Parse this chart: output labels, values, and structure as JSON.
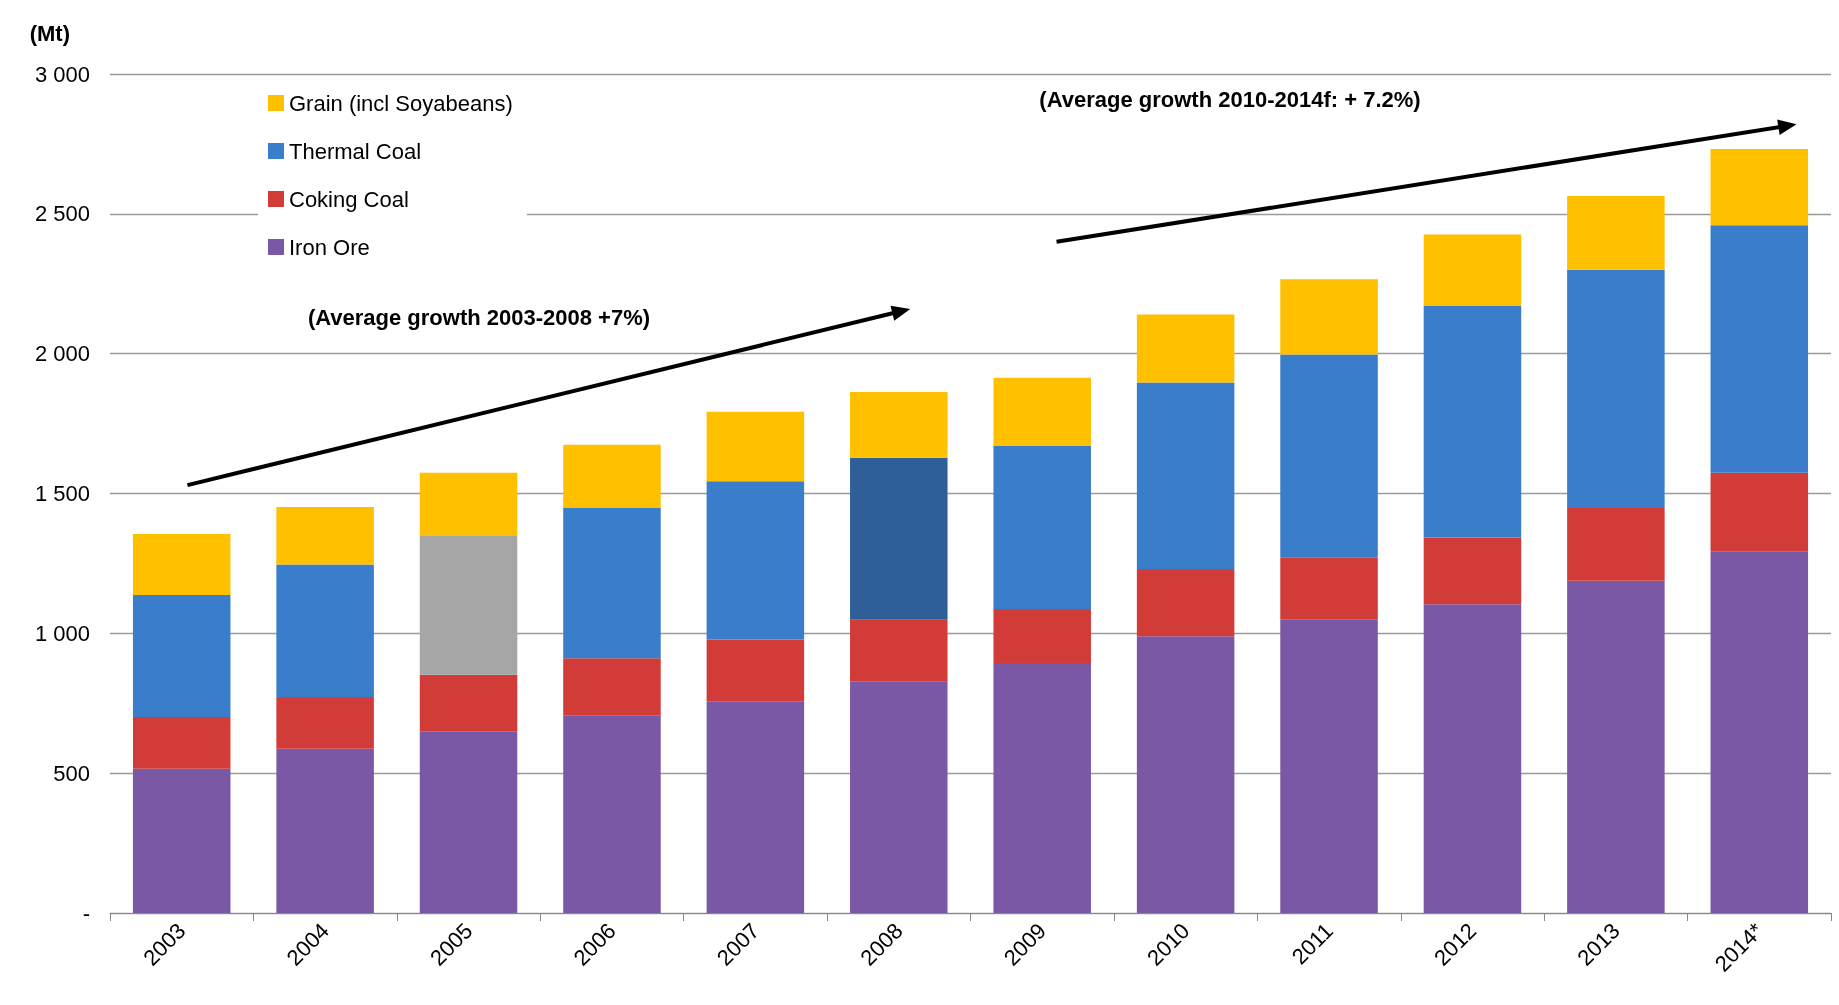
{
  "chart_data": {
    "type": "bar",
    "stacked": true,
    "ylabel": "(Mt)",
    "categories": [
      "2003",
      "2004",
      "2005",
      "2006",
      "2007",
      "2008",
      "2009",
      "2010",
      "2011",
      "2012",
      "2013",
      "2014*"
    ],
    "series": [
      {
        "name": "Iron Ore",
        "color": "#7b58a6",
        "values": [
          516,
          587,
          650,
          705,
          755,
          827,
          894,
          990,
          1049,
          1104,
          1188,
          1292
        ]
      },
      {
        "name": "Coking Coal",
        "color": "#d23c38",
        "values": [
          185,
          185,
          202,
          206,
          223,
          222,
          193,
          240,
          223,
          239,
          260,
          282
        ]
      },
      {
        "name": "Thermal Coal",
        "color": "#3a7dcb",
        "colors": [
          "#3a7dcb",
          "#3a7dcb",
          "#a6a6a6",
          "#3a7dcb",
          "#3a7dcb",
          "#2e5f99",
          "#3a7dcb",
          "#3a7dcb",
          "#3a7dcb",
          "#3a7dcb",
          "#3a7dcb",
          "#3a7dcb"
        ],
        "values": [
          436,
          474,
          499,
          537,
          566,
          579,
          583,
          667,
          725,
          827,
          852,
          885
        ]
      },
      {
        "name": "Grain (incl Soyabeans)",
        "color": "#ffc000",
        "values": [
          218,
          206,
          223,
          226,
          248,
          235,
          244,
          243,
          269,
          256,
          264,
          273
        ]
      }
    ],
    "ylim": [
      0,
      3000
    ],
    "yticks": [
      {
        "value": 0,
        "label": "-"
      },
      {
        "value": 500,
        "label": "500"
      },
      {
        "value": 1000,
        "label": "1 000"
      },
      {
        "value": 1500,
        "label": "1 500"
      },
      {
        "value": 2000,
        "label": "2 000"
      },
      {
        "value": 2500,
        "label": "2 500"
      },
      {
        "value": 3000,
        "label": "3 000"
      }
    ],
    "grid": "y",
    "legend": "top left",
    "annotations": [
      "(Average growth 2003-2008 +7%)",
      "(Average growth 2010-2014f: + 7.2%)"
    ]
  }
}
